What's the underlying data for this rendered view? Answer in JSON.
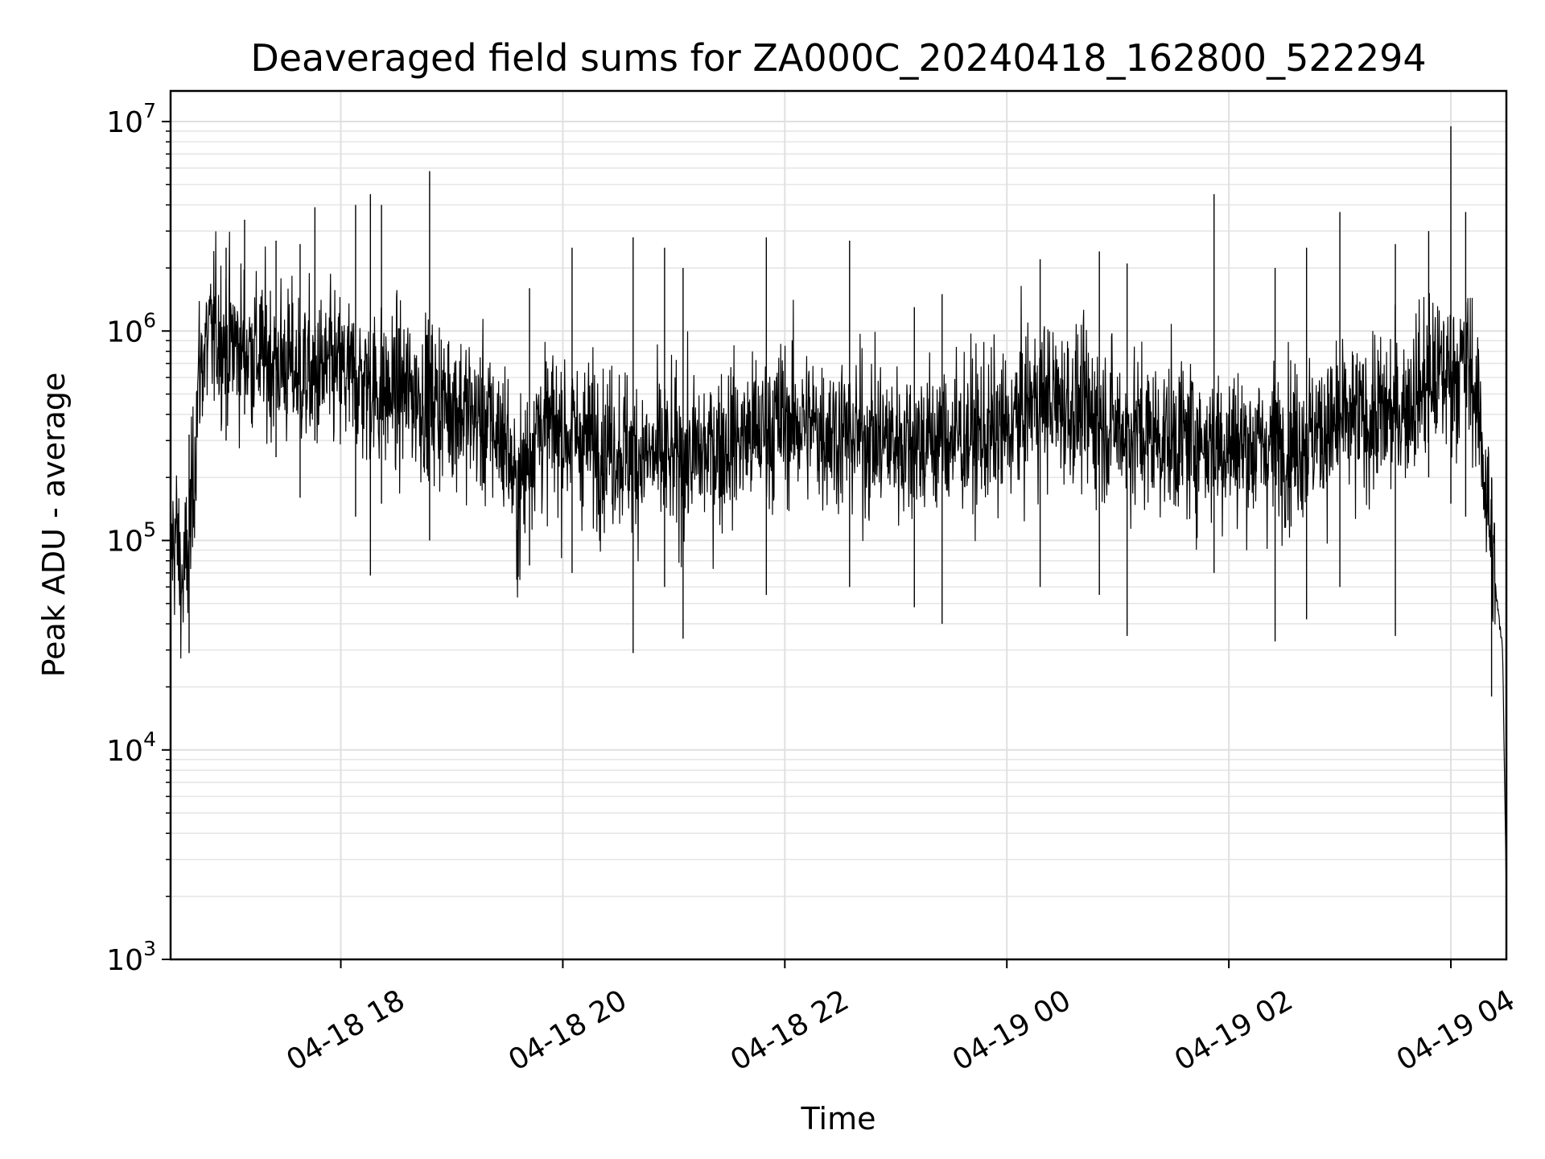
{
  "chart_data": {
    "type": "line",
    "title": "Deaveraged field sums for ZA000C_20240418_162800_522294",
    "xlabel": "Time",
    "ylabel": "Peak ADU - average",
    "y_scale": "log",
    "ylim": [
      1000,
      14000000
    ],
    "xlim": [
      "04-18 16:28",
      "04-19 04:30"
    ],
    "grid": true,
    "legend": "none",
    "line_color": "#000000",
    "x_ticks": [
      {
        "time": "04-18 18:00",
        "label": "04-18 18"
      },
      {
        "time": "04-18 20:00",
        "label": "04-18 20"
      },
      {
        "time": "04-18 22:00",
        "label": "04-18 22"
      },
      {
        "time": "04-19 00:00",
        "label": "04-19 00"
      },
      {
        "time": "04-19 02:00",
        "label": "04-19 02"
      },
      {
        "time": "04-19 04:00",
        "label": "04-19 04"
      }
    ],
    "y_ticks": [
      {
        "value": 1000,
        "base": "10",
        "exp": "3"
      },
      {
        "value": 10000,
        "base": "10",
        "exp": "4"
      },
      {
        "value": 100000,
        "base": "10",
        "exp": "5"
      },
      {
        "value": 1000000,
        "base": "10",
        "exp": "6"
      },
      {
        "value": 10000000,
        "base": "10",
        "exp": "7"
      }
    ],
    "series": [
      {
        "x": [
          "04-18 16:28",
          "04-18 16:31",
          "04-18 16:34",
          "04-18 16:37",
          "04-18 16:40",
          "04-18 16:43",
          "04-18 16:46",
          "04-18 16:52",
          "04-18 16:58",
          "04-18 17:05",
          "04-18 17:12",
          "04-18 17:20",
          "04-18 17:28",
          "04-18 17:36",
          "04-18 17:45",
          "04-18 17:55",
          "04-18 18:05",
          "04-18 18:15",
          "04-18 18:25",
          "04-18 18:35",
          "04-18 18:45",
          "04-18 19:00",
          "04-18 19:15",
          "04-18 19:30",
          "04-18 19:35",
          "04-18 19:45",
          "04-18 20:00",
          "04-18 20:15",
          "04-18 20:30",
          "04-18 20:45",
          "04-18 21:00",
          "04-18 21:15",
          "04-18 21:30",
          "04-18 21:45",
          "04-18 22:00",
          "04-18 22:15",
          "04-18 22:30",
          "04-18 22:45",
          "04-18 23:00",
          "04-18 23:15",
          "04-18 23:30",
          "04-18 23:45",
          "04-19 00:00",
          "04-19 00:15",
          "04-19 00:30",
          "04-19 00:45",
          "04-19 01:00",
          "04-19 01:15",
          "04-19 01:30",
          "04-19 01:45",
          "04-19 02:00",
          "04-19 02:15",
          "04-19 02:30",
          "04-19 02:45",
          "04-19 03:00",
          "04-19 03:15",
          "04-19 03:30",
          "04-19 03:45",
          "04-19 04:00",
          "04-19 04:10",
          "04-19 04:15",
          "04-19 04:20",
          "04-19 04:25",
          "04-19 04:28",
          "04-19 04:30"
        ],
        "y": [
          90000,
          110000,
          60000,
          80000,
          160000,
          600000,
          800000,
          1000000,
          900000,
          850000,
          800000,
          750000,
          700000,
          650000,
          600000,
          650000,
          600000,
          550000,
          500000,
          520000,
          480000,
          450000,
          380000,
          300000,
          150000,
          350000,
          330000,
          300000,
          280000,
          250000,
          240000,
          260000,
          300000,
          320000,
          380000,
          350000,
          330000,
          310000,
          300000,
          300000,
          310000,
          320000,
          330000,
          480000,
          450000,
          400000,
          350000,
          320000,
          310000,
          300000,
          290000,
          280000,
          290000,
          320000,
          350000,
          380000,
          400000,
          550000,
          650000,
          700000,
          400000,
          150000,
          50000,
          30000,
          2000
        ]
      }
    ],
    "spikes": [
      {
        "time": "04-18 16:38",
        "min": 29000,
        "max": 320000
      },
      {
        "time": "04-18 16:58",
        "min": 300000,
        "max": 2500000
      },
      {
        "time": "04-18 17:08",
        "min": 400000,
        "max": 3400000
      },
      {
        "time": "04-18 17:25",
        "min": 250000,
        "max": 2700000
      },
      {
        "time": "04-18 17:38",
        "min": 160000,
        "max": 2600000
      },
      {
        "time": "04-18 17:46",
        "min": 300000,
        "max": 3900000
      },
      {
        "time": "04-18 18:08",
        "min": 130000,
        "max": 4000000
      },
      {
        "time": "04-18 18:16",
        "min": 68000,
        "max": 4500000
      },
      {
        "time": "04-18 18:22",
        "min": 150000,
        "max": 4000000
      },
      {
        "time": "04-18 18:48",
        "min": 100000,
        "max": 5800000
      },
      {
        "time": "04-18 19:42",
        "min": 76000,
        "max": 1600000
      },
      {
        "time": "04-18 20:05",
        "min": 70000,
        "max": 2500000
      },
      {
        "time": "04-18 20:38",
        "min": 29000,
        "max": 2800000
      },
      {
        "time": "04-18 20:55",
        "min": 60000,
        "max": 2500000
      },
      {
        "time": "04-18 21:05",
        "min": 34000,
        "max": 2000000
      },
      {
        "time": "04-18 21:50",
        "min": 55000,
        "max": 2800000
      },
      {
        "time": "04-18 22:35",
        "min": 60000,
        "max": 2700000
      },
      {
        "time": "04-18 23:10",
        "min": 48000,
        "max": 1300000
      },
      {
        "time": "04-18 23:25",
        "min": 40000,
        "max": 1500000
      },
      {
        "time": "04-19 00:18",
        "min": 60000,
        "max": 2200000
      },
      {
        "time": "04-19 00:50",
        "min": 55000,
        "max": 2400000
      },
      {
        "time": "04-19 01:05",
        "min": 35000,
        "max": 2100000
      },
      {
        "time": "04-19 01:52",
        "min": 70000,
        "max": 4500000
      },
      {
        "time": "04-19 02:25",
        "min": 33000,
        "max": 2000000
      },
      {
        "time": "04-19 02:42",
        "min": 42000,
        "max": 2500000
      },
      {
        "time": "04-19 03:00",
        "min": 60000,
        "max": 3700000
      },
      {
        "time": "04-19 03:30",
        "min": 35000,
        "max": 2600000
      },
      {
        "time": "04-19 03:48",
        "min": 200000,
        "max": 3000000
      },
      {
        "time": "04-19 04:00",
        "min": 150000,
        "max": 9500000
      },
      {
        "time": "04-19 04:08",
        "min": 130000,
        "max": 3700000
      },
      {
        "time": "04-19 04:22",
        "min": 18000,
        "max": 200000
      }
    ]
  }
}
